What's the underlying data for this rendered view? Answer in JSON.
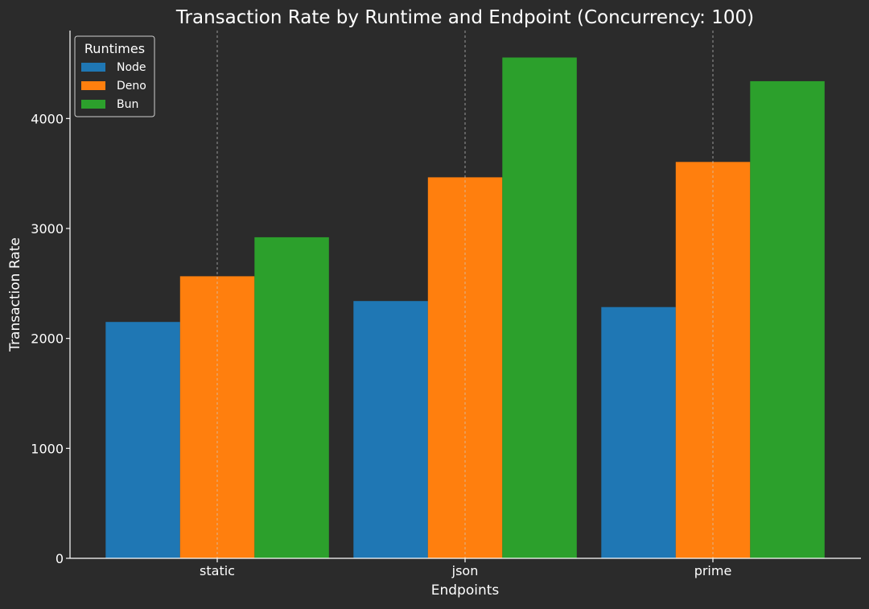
{
  "chart_data": {
    "type": "bar",
    "title": "Transaction Rate by Runtime and Endpoint (Concurrency: 100)",
    "xlabel": "Endpoints",
    "ylabel": "Transaction Rate",
    "categories": [
      "static",
      "json",
      "prime"
    ],
    "series": [
      {
        "name": "Node",
        "color": "#1f77b4",
        "values": [
          2150,
          2340,
          2285
        ]
      },
      {
        "name": "Deno",
        "color": "#ff7f0e",
        "values": [
          2565,
          3465,
          3605
        ]
      },
      {
        "name": "Bun",
        "color": "#2ca02c",
        "values": [
          2920,
          4555,
          4340
        ]
      }
    ],
    "ylim": [
      0,
      4800
    ],
    "yticks": [
      0,
      1000,
      2000,
      3000,
      4000
    ],
    "grid": {
      "x": true,
      "y": false,
      "style": "dashed"
    },
    "legend": {
      "title": "Runtimes",
      "placement": "upper-left"
    },
    "background": "#2b2b2b",
    "text_color": "#ffffff"
  }
}
